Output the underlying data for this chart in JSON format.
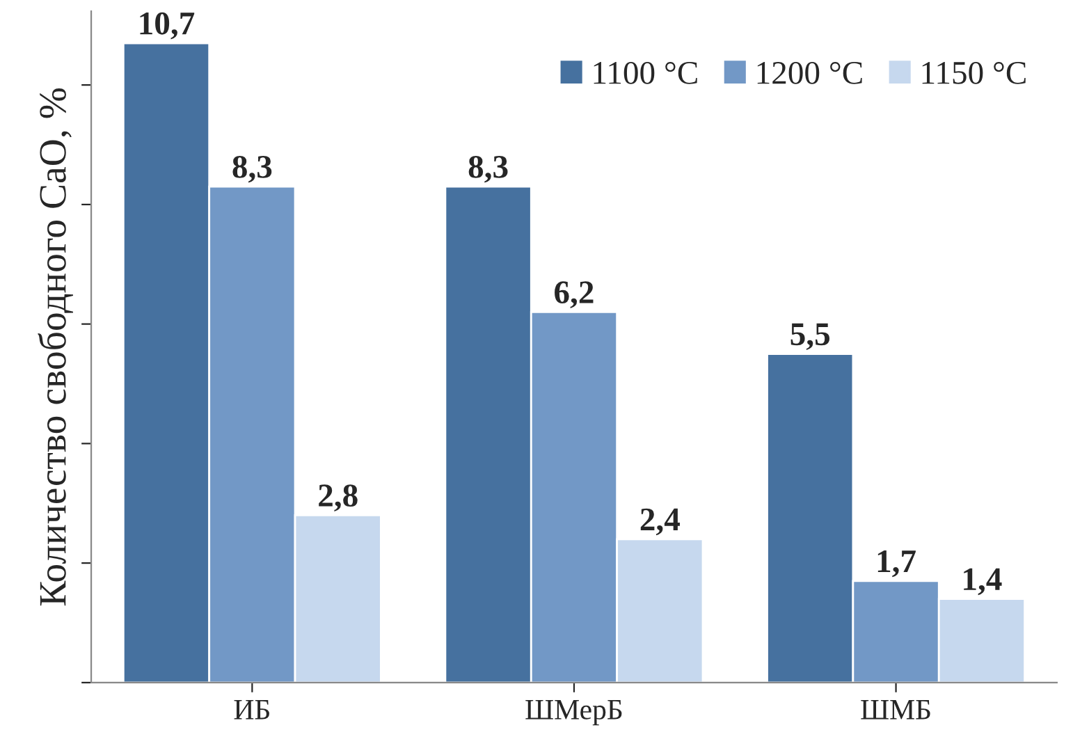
{
  "chart_data": {
    "type": "bar",
    "ylabel": "Количество свободного CaO, %",
    "categories": [
      "ИБ",
      "ШМерБ",
      "ШМБ"
    ],
    "series": [
      {
        "name": "1100 °C",
        "color": "#46719f",
        "values": [
          10.7,
          8.3,
          5.5
        ],
        "value_labels": [
          "10,7",
          "8,3",
          "5,5"
        ]
      },
      {
        "name": "1200 °C",
        "color": "#7298c6",
        "values": [
          8.3,
          6.2,
          1.7
        ],
        "value_labels": [
          "8,3",
          "6,2",
          "1,7"
        ]
      },
      {
        "name": "1150 °C",
        "color": "#c6d8ee",
        "values": [
          2.8,
          2.4,
          1.4
        ],
        "value_labels": [
          "2,8",
          "2,4",
          "1,4"
        ]
      }
    ],
    "tick_labels": "x",
    "legend": "top right"
  }
}
